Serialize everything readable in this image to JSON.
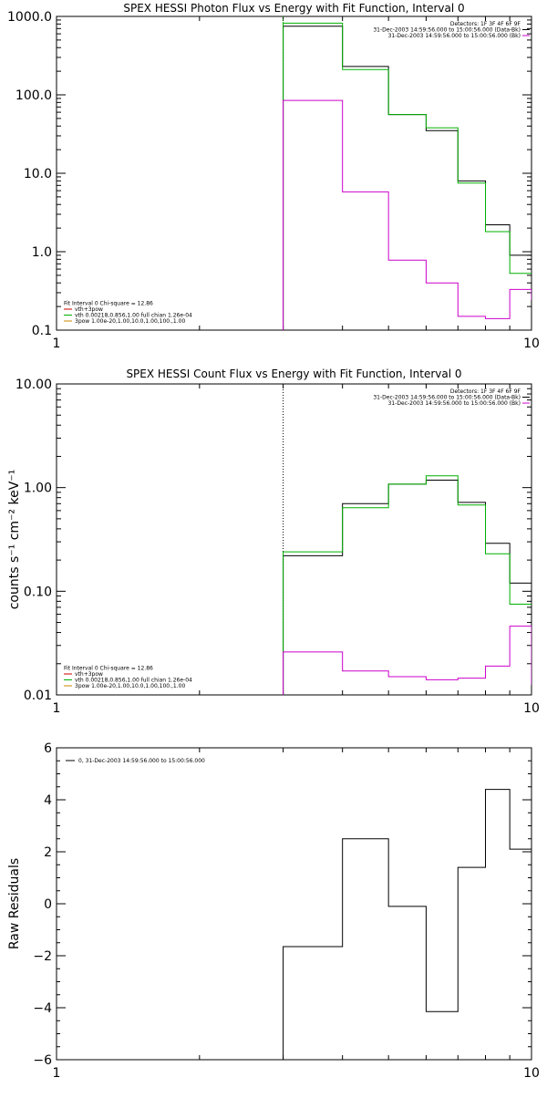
{
  "chart_data": [
    {
      "type": "line",
      "title": "SPEX HESSI Photon Flux vs Energy with Fit Function, Interval 0",
      "ylabel": "",
      "xlabel": "",
      "xscale": "log",
      "yscale": "log",
      "xlim": [
        1,
        10
      ],
      "ylim": [
        0.1,
        1000
      ],
      "xticklabels": [
        "1",
        "10"
      ],
      "yticks": [
        0.1,
        1,
        10,
        100,
        1000
      ],
      "yticklabels": [
        "0.1",
        "1.0",
        "10.0",
        "100.0",
        "1000.0"
      ],
      "vline_x": 3,
      "vline_color": "#00b000",
      "legend_topright": [
        {
          "text": "Detectors: 1F 3F 4F 6F 9F",
          "color": ""
        },
        {
          "text": "31-Dec-2003 14:59:56.000 to 15:00:56.000 (Data-Bk)",
          "color": "#000000"
        },
        {
          "text": "31-Dec-2003 14:59:56.000 to 15:00:56.000 (Bk)",
          "color": "#cc00cc"
        }
      ],
      "legend_bottomleft": [
        {
          "text": "Fit Interval 0   Chi-square = 12.86",
          "color": ""
        },
        {
          "text": "vth+3pow",
          "color": "#cc0000"
        },
        {
          "text": "vth 0.00218,0.856,1.00  full chian 1.26e-04",
          "color": "#00b000"
        },
        {
          "text": "3pow 1.00e-20,1.00,10.0,1.00,100.,1.00",
          "color": "#cc8800"
        }
      ],
      "edges": [
        3,
        4,
        5,
        6,
        7,
        8,
        9,
        10
      ],
      "series": [
        {
          "name": "Data-Bk",
          "color": "#000000",
          "values": [
            750,
            230,
            56,
            35,
            8,
            2.2,
            0.9
          ],
          "tail": 0.9
        },
        {
          "name": "",
          "color": "#00b000",
          "values": [
            820,
            210,
            56,
            38,
            7.5,
            1.8,
            0.53
          ],
          "tail": 0.53
        },
        {
          "name": "Bk",
          "color": "#cc00cc",
          "values": [
            85,
            5.8,
            0.78,
            0.4,
            0.15,
            0.14,
            0.33
          ],
          "tail": 0.24
        }
      ]
    },
    {
      "type": "line",
      "title": "SPEX HESSI Count Flux vs Energy with Fit Function, Interval 0",
      "ylabel": "counts s⁻¹ cm⁻² keV⁻¹",
      "xlabel": "",
      "xscale": "log",
      "yscale": "log",
      "xlim": [
        1,
        10
      ],
      "ylim": [
        0.01,
        10
      ],
      "xticklabels": [
        "1",
        "10"
      ],
      "yticks": [
        0.01,
        0.1,
        1,
        10
      ],
      "yticklabels": [
        "0.01",
        "0.10",
        "1.00",
        "10.00"
      ],
      "vline_x": 3,
      "vline_color": "#000000",
      "legend_topright": [
        {
          "text": "Detectors: 1F 3F 4F 6F 9F",
          "color": ""
        },
        {
          "text": "31-Dec-2003 14:59:56.000 to 15:00:56.000 (Data-Bk)",
          "color": "#000000"
        },
        {
          "text": "31-Dec-2003 14:59:56.000 to 15:00:56.000 (Bk)",
          "color": "#cc00cc"
        }
      ],
      "legend_bottomleft": [
        {
          "text": "Fit Interval 0   Chi-square = 12.86",
          "color": ""
        },
        {
          "text": "vth+3pow",
          "color": "#cc0000"
        },
        {
          "text": "vth 0.00218,0.856,1.00  full chian 1.26e-04",
          "color": "#00b000"
        },
        {
          "text": "3pow 1.00e-20,1.00,10.0,1.00,100.,1.00",
          "color": "#cc8800"
        }
      ],
      "edges": [
        3,
        4,
        5,
        6,
        7,
        8,
        9,
        10
      ],
      "series": [
        {
          "name": "Data-Bk",
          "color": "#000000",
          "values": [
            0.22,
            0.7,
            1.08,
            1.18,
            0.72,
            0.29,
            0.12
          ],
          "tail": 0.12
        },
        {
          "name": "",
          "color": "#00b000",
          "values": [
            0.24,
            0.64,
            1.08,
            1.3,
            0.68,
            0.23,
            0.075
          ],
          "tail": 0.075
        },
        {
          "name": "Bk",
          "color": "#cc00cc",
          "values": [
            0.026,
            0.017,
            0.015,
            0.014,
            0.0145,
            0.019,
            0.046
          ],
          "tail": 0.0125
        }
      ]
    },
    {
      "type": "line",
      "title": "",
      "ylabel": "Raw Residuals",
      "xlabel": "",
      "xscale": "log",
      "yscale": "linear",
      "xlim": [
        1,
        10
      ],
      "ylim": [
        -6,
        6
      ],
      "xticklabels": [
        "1",
        "10"
      ],
      "yticks": [
        -6,
        -4,
        -2,
        0,
        2,
        4,
        6
      ],
      "yticklabels": [
        "−6",
        "−4",
        "−2",
        "0",
        "2",
        "4",
        "6"
      ],
      "legend_topleft": [
        {
          "text": "0, 31-Dec-2003 14:59:56.000 to 15:00:56.000",
          "color": "#000000"
        }
      ],
      "edges": [
        3,
        4,
        5,
        6,
        7,
        8,
        9,
        10
      ],
      "series": [
        {
          "name": "0, 31-Dec-2003 14:59:56.000 to 15:00:56.000",
          "color": "#000000",
          "values": [
            -1.65,
            2.5,
            -0.1,
            -4.15,
            1.4,
            4.4,
            2.1
          ],
          "tail": 2.1
        }
      ]
    }
  ]
}
